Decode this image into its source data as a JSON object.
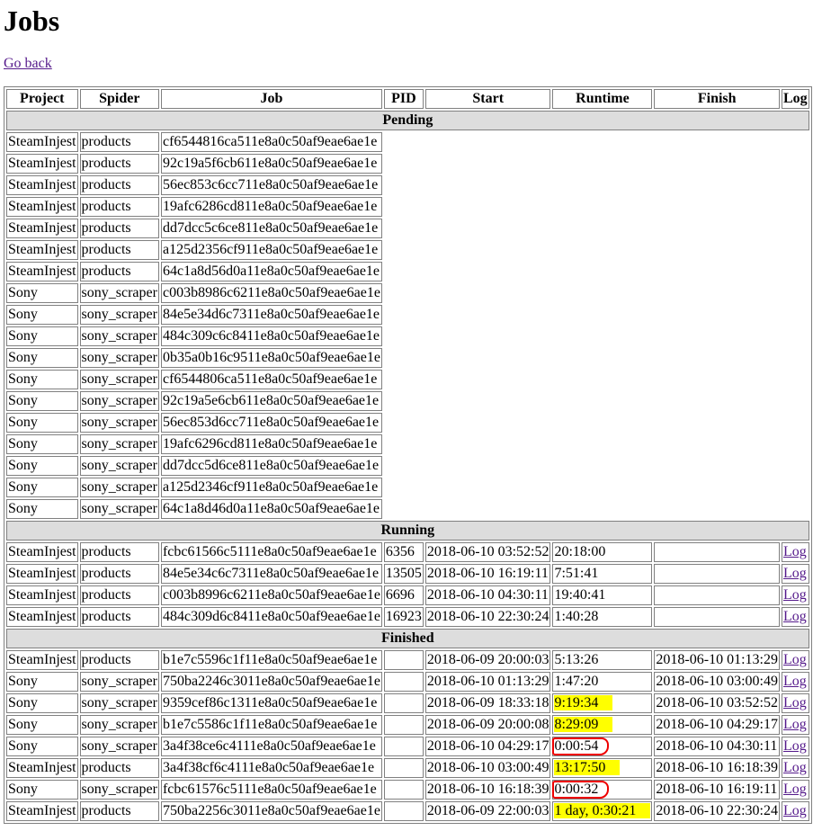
{
  "title": "Jobs",
  "back_link": "Go back",
  "columns": [
    "Project",
    "Spider",
    "Job",
    "PID",
    "Start",
    "Runtime",
    "Finish",
    "Log"
  ],
  "log_label": "Log",
  "highlight_colors": {
    "yellow": "#ffff00",
    "red_circle": "#e00000"
  },
  "sections": [
    {
      "name": "Pending",
      "rows": [
        {
          "project": "SteamInjest",
          "spider": "products",
          "job": "cf6544816ca511e8a0c50af9eae6ae1e"
        },
        {
          "project": "SteamInjest",
          "spider": "products",
          "job": "92c19a5f6cb611e8a0c50af9eae6ae1e"
        },
        {
          "project": "SteamInjest",
          "spider": "products",
          "job": "56ec853c6cc711e8a0c50af9eae6ae1e"
        },
        {
          "project": "SteamInjest",
          "spider": "products",
          "job": "19afc6286cd811e8a0c50af9eae6ae1e"
        },
        {
          "project": "SteamInjest",
          "spider": "products",
          "job": "dd7dcc5c6ce811e8a0c50af9eae6ae1e"
        },
        {
          "project": "SteamInjest",
          "spider": "products",
          "job": "a125d2356cf911e8a0c50af9eae6ae1e"
        },
        {
          "project": "SteamInjest",
          "spider": "products",
          "job": "64c1a8d56d0a11e8a0c50af9eae6ae1e"
        },
        {
          "project": "Sony",
          "spider": "sony_scraper",
          "job": "c003b8986c6211e8a0c50af9eae6ae1e"
        },
        {
          "project": "Sony",
          "spider": "sony_scraper",
          "job": "84e5e34d6c7311e8a0c50af9eae6ae1e"
        },
        {
          "project": "Sony",
          "spider": "sony_scraper",
          "job": "484c309c6c8411e8a0c50af9eae6ae1e"
        },
        {
          "project": "Sony",
          "spider": "sony_scraper",
          "job": "0b35a0b16c9511e8a0c50af9eae6ae1e"
        },
        {
          "project": "Sony",
          "spider": "sony_scraper",
          "job": "cf6544806ca511e8a0c50af9eae6ae1e"
        },
        {
          "project": "Sony",
          "spider": "sony_scraper",
          "job": "92c19a5e6cb611e8a0c50af9eae6ae1e"
        },
        {
          "project": "Sony",
          "spider": "sony_scraper",
          "job": "56ec853d6cc711e8a0c50af9eae6ae1e"
        },
        {
          "project": "Sony",
          "spider": "sony_scraper",
          "job": "19afc6296cd811e8a0c50af9eae6ae1e"
        },
        {
          "project": "Sony",
          "spider": "sony_scraper",
          "job": "dd7dcc5d6ce811e8a0c50af9eae6ae1e"
        },
        {
          "project": "Sony",
          "spider": "sony_scraper",
          "job": "a125d2346cf911e8a0c50af9eae6ae1e"
        },
        {
          "project": "Sony",
          "spider": "sony_scraper",
          "job": "64c1a8d46d0a11e8a0c50af9eae6ae1e"
        }
      ]
    },
    {
      "name": "Running",
      "rows": [
        {
          "project": "SteamInjest",
          "spider": "products",
          "job": "fcbc61566c5111e8a0c50af9eae6ae1e",
          "pid": "6356",
          "start": "2018-06-10 03:52:52",
          "runtime": "20:18:00",
          "finish": "",
          "log": true
        },
        {
          "project": "SteamInjest",
          "spider": "products",
          "job": "84e5e34c6c7311e8a0c50af9eae6ae1e",
          "pid": "13505",
          "start": "2018-06-10 16:19:11",
          "runtime": "7:51:41",
          "finish": "",
          "log": true
        },
        {
          "project": "SteamInjest",
          "spider": "products",
          "job": "c003b8996c6211e8a0c50af9eae6ae1e",
          "pid": "6696",
          "start": "2018-06-10 04:30:11",
          "runtime": "19:40:41",
          "finish": "",
          "log": true
        },
        {
          "project": "SteamInjest",
          "spider": "products",
          "job": "484c309d6c8411e8a0c50af9eae6ae1e",
          "pid": "16923",
          "start": "2018-06-10 22:30:24",
          "runtime": "1:40:28",
          "finish": "",
          "log": true
        }
      ]
    },
    {
      "name": "Finished",
      "rows": [
        {
          "project": "SteamInjest",
          "spider": "products",
          "job": "b1e7c5596c1f11e8a0c50af9eae6ae1e",
          "pid": "",
          "start": "2018-06-09 20:00:03",
          "runtime": "5:13:26",
          "finish": "2018-06-10 01:13:29",
          "log": true
        },
        {
          "project": "Sony",
          "spider": "sony_scraper",
          "job": "750ba2246c3011e8a0c50af9eae6ae1e",
          "pid": "",
          "start": "2018-06-10 01:13:29",
          "runtime": "1:47:20",
          "finish": "2018-06-10 03:00:49",
          "log": true
        },
        {
          "project": "Sony",
          "spider": "sony_scraper",
          "job": "9359cef86c1311e8a0c50af9eae6ae1e",
          "pid": "",
          "start": "2018-06-09 18:33:18",
          "runtime": "9:19:34",
          "finish": "2018-06-10 03:52:52",
          "log": true,
          "highlight": "yellow"
        },
        {
          "project": "Sony",
          "spider": "sony_scraper",
          "job": "b1e7c5586c1f11e8a0c50af9eae6ae1e",
          "pid": "",
          "start": "2018-06-09 20:00:08",
          "runtime": "8:29:09",
          "finish": "2018-06-10 04:29:17",
          "log": true,
          "highlight": "yellow"
        },
        {
          "project": "Sony",
          "spider": "sony_scraper",
          "job": "3a4f38ce6c4111e8a0c50af9eae6ae1e",
          "pid": "",
          "start": "2018-06-10 04:29:17",
          "runtime": "0:00:54",
          "finish": "2018-06-10 04:30:11",
          "log": true,
          "highlight": "red"
        },
        {
          "project": "SteamInjest",
          "spider": "products",
          "job": "3a4f38cf6c4111e8a0c50af9eae6ae1e",
          "pid": "",
          "start": "2018-06-10 03:00:49",
          "runtime": "13:17:50",
          "finish": "2018-06-10 16:18:39",
          "log": true,
          "highlight": "yellow"
        },
        {
          "project": "Sony",
          "spider": "sony_scraper",
          "job": "fcbc61576c5111e8a0c50af9eae6ae1e",
          "pid": "",
          "start": "2018-06-10 16:18:39",
          "runtime": "0:00:32",
          "finish": "2018-06-10 16:19:11",
          "log": true,
          "highlight": "red"
        },
        {
          "project": "SteamInjest",
          "spider": "products",
          "job": "750ba2256c3011e8a0c50af9eae6ae1e",
          "pid": "",
          "start": "2018-06-09 22:00:03",
          "runtime": "1 day, 0:30:21",
          "finish": "2018-06-10 22:30:24",
          "log": true,
          "highlight": "yellow"
        }
      ]
    }
  ]
}
